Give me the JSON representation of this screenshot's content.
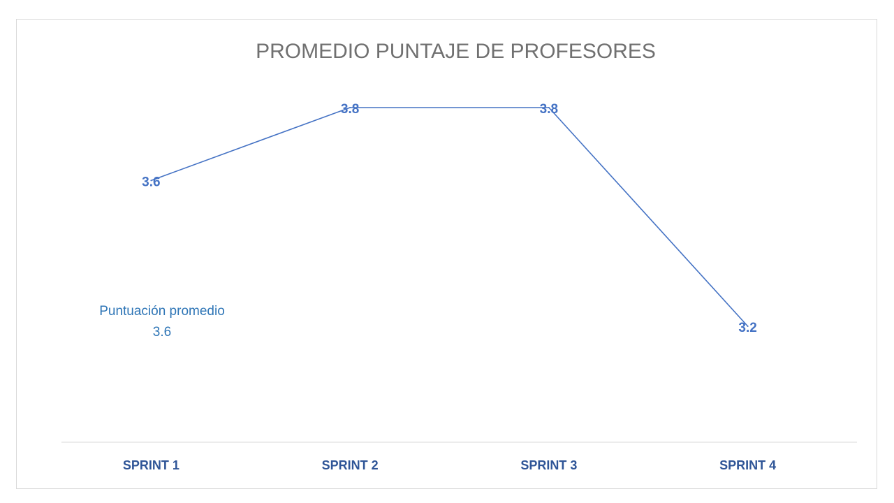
{
  "chart_data": {
    "type": "line",
    "title": "PROMEDIO PUNTAJE DE PROFESORES",
    "categories": [
      "SPRINT 1",
      "SPRINT 2",
      "SPRINT 3",
      "SPRINT 4"
    ],
    "series": [
      {
        "values": [
          3.6,
          3.8,
          3.8,
          3.2
        ],
        "data_labels": [
          "3.6",
          "3.8",
          "3.8",
          "3.2"
        ]
      }
    ],
    "xlabel": "",
    "ylabel": "",
    "grid": false,
    "legend": "none",
    "annotation": {
      "label": "Puntuación promedio",
      "value": "3.6"
    }
  },
  "colors": {
    "line": "#4472c4",
    "data_label": "#4472c4",
    "category_label": "#2f5597",
    "title": "#707070",
    "annotation": "#2e75b6",
    "axis": "#d9d9d9"
  }
}
